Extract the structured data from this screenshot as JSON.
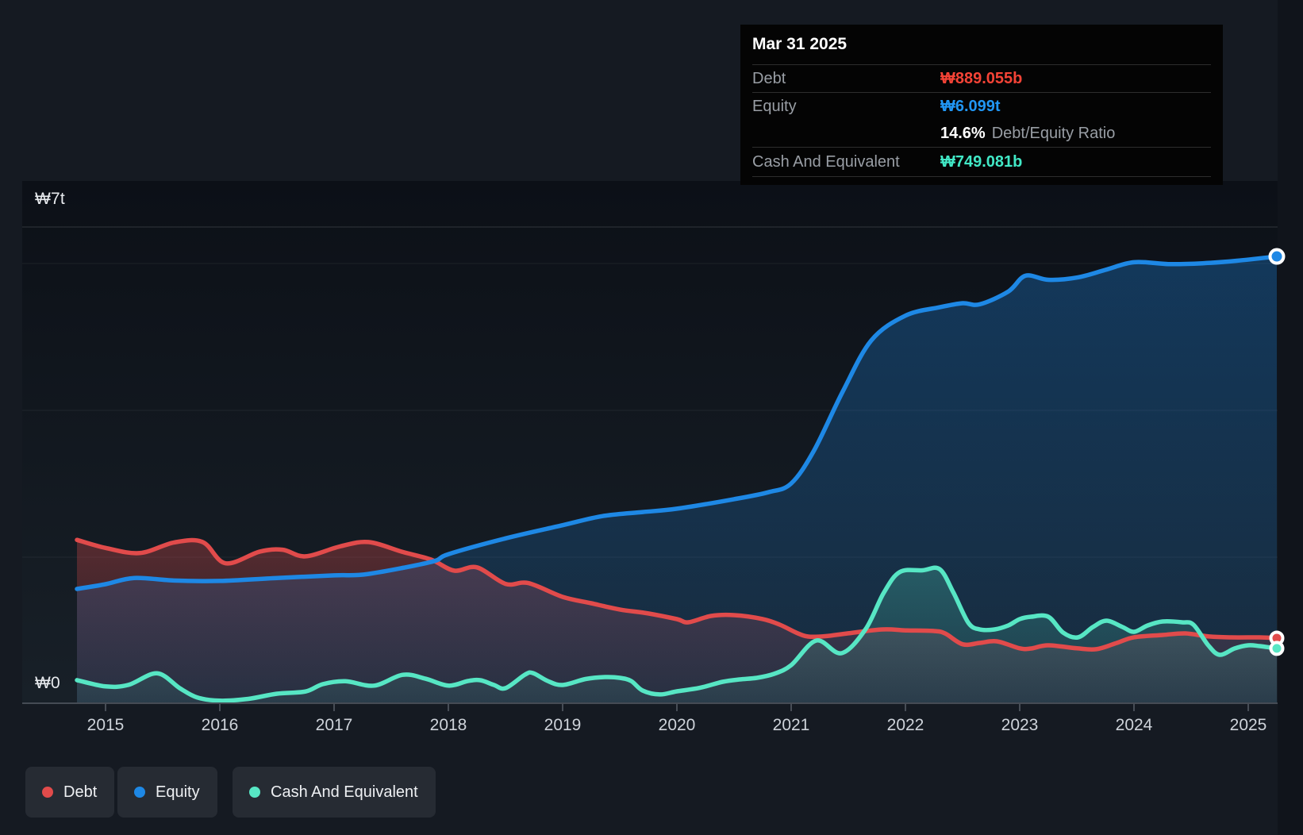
{
  "tooltip": {
    "date": "Mar 31 2025",
    "debt_label": "Debt",
    "debt_value": "₩889.055b",
    "equity_label": "Equity",
    "equity_value": "₩6.099t",
    "ratio_value": "14.6%",
    "ratio_label": "Debt/Equity Ratio",
    "cash_label": "Cash And Equivalent",
    "cash_value": "₩749.081b"
  },
  "y_axis": {
    "top_label": "₩7t",
    "bottom_label": "₩0"
  },
  "x_axis": {
    "labels": [
      "2015",
      "2016",
      "2017",
      "2018",
      "2019",
      "2020",
      "2021",
      "2022",
      "2023",
      "2024",
      "2025"
    ]
  },
  "legend": [
    {
      "label": "Debt",
      "color": "#e14b4b"
    },
    {
      "label": "Equity",
      "color": "#1e88e5"
    },
    {
      "label": "Cash And Equivalent",
      "color": "#57e6c4"
    }
  ],
  "colors": {
    "background": "#151a22",
    "plot_top": "#0c1017",
    "plot_bottom": "#182028",
    "grid_major": "rgba(255,255,255,0.10)",
    "grid_minor": "rgba(255,255,255,0.05)",
    "axis_line": "#454b54",
    "tick_label": "#ced3da",
    "tooltip_bg": "#040404",
    "debt_text": "#f44336",
    "equity_text": "#2196f3",
    "cash_text": "#41e8c6"
  },
  "chart_data": {
    "type": "area",
    "title": "",
    "xlabel": "",
    "ylabel": "₩ (won)",
    "value_unit": "billions of ₩",
    "x_unit": "decimal year",
    "xlim": [
      2014.75,
      2025.25
    ],
    "ylim": [
      0,
      7000
    ],
    "grid": true,
    "legend_position": "bottom-left",
    "latest_point": {
      "date": "Mar 31 2025",
      "debt_b": 889.055,
      "equity_b": 6099,
      "cash_b": 749.081,
      "debt_equity_ratio_pct": 14.6
    },
    "series": [
      {
        "name": "Debt",
        "color": "#e14b4b",
        "x": [
          2014.75,
          2015,
          2015.3,
          2015.6,
          2015.85,
          2016.05,
          2016.35,
          2016.55,
          2016.75,
          2017.05,
          2017.3,
          2017.6,
          2017.85,
          2018.05,
          2018.25,
          2018.5,
          2018.7,
          2019,
          2019.25,
          2019.5,
          2019.75,
          2020,
          2020.1,
          2020.3,
          2020.5,
          2020.75,
          2020.9,
          2021.05,
          2021.15,
          2021.3,
          2021.5,
          2021.8,
          2022,
          2022.25,
          2022.35,
          2022.5,
          2022.65,
          2022.8,
          2023,
          2023.1,
          2023.25,
          2023.5,
          2023.67,
          2023.85,
          2024,
          2024.25,
          2024.45,
          2024.65,
          2024.85,
          2025.1,
          2025.25
        ],
        "values": [
          2230,
          2120,
          2050,
          2195,
          2200,
          1910,
          2070,
          2095,
          2005,
          2140,
          2200,
          2065,
          1960,
          1810,
          1855,
          1630,
          1640,
          1452,
          1365,
          1280,
          1225,
          1148,
          1105,
          1192,
          1203,
          1150,
          1073,
          960,
          910,
          915,
          955,
          1008,
          995,
          986,
          950,
          805,
          823,
          845,
          750,
          748,
          791,
          750,
          738,
          823,
          900,
          932,
          953,
          912,
          899,
          899,
          889.055
        ]
      },
      {
        "name": "Equity",
        "color": "#1e88e5",
        "x": [
          2014.75,
          2015,
          2015.25,
          2015.6,
          2016,
          2016.5,
          2017,
          2017.3,
          2017.85,
          2018,
          2018.5,
          2019,
          2019.35,
          2019.7,
          2020,
          2020.5,
          2020.8,
          2021,
          2021.2,
          2021.45,
          2021.7,
          2022,
          2022.3,
          2022.5,
          2022.65,
          2022.9,
          2023.05,
          2023.25,
          2023.5,
          2023.75,
          2024,
          2024.3,
          2024.6,
          2024.9,
          2025.25
        ],
        "values": [
          1560,
          1625,
          1710,
          1675,
          1670,
          1710,
          1745,
          1765,
          1930,
          2035,
          2250,
          2430,
          2555,
          2610,
          2655,
          2785,
          2880,
          3000,
          3450,
          4250,
          4950,
          5290,
          5405,
          5460,
          5445,
          5620,
          5835,
          5780,
          5810,
          5915,
          6020,
          5995,
          6005,
          6040,
          6099
        ]
      },
      {
        "name": "Cash And Equivalent",
        "color": "#57e6c4",
        "x": [
          2014.75,
          2015,
          2015.2,
          2015.45,
          2015.65,
          2015.8,
          2016,
          2016.25,
          2016.5,
          2016.75,
          2016.9,
          2017.1,
          2017.35,
          2017.6,
          2017.8,
          2018,
          2018.17,
          2018.28,
          2018.4,
          2018.5,
          2018.67,
          2018.74,
          2018.87,
          2019,
          2019.2,
          2019.37,
          2019.5,
          2019.6,
          2019.7,
          2019.85,
          2020,
          2020.2,
          2020.4,
          2020.55,
          2020.7,
          2020.85,
          2021,
          2021.22,
          2021.44,
          2021.65,
          2021.81,
          2021.95,
          2022.15,
          2022.3,
          2022.42,
          2022.55,
          2022.65,
          2022.78,
          2022.9,
          2023,
          2023.1,
          2023.25,
          2023.38,
          2023.51,
          2023.64,
          2023.76,
          2023.9,
          2024,
          2024.12,
          2024.25,
          2024.42,
          2024.52,
          2024.65,
          2024.75,
          2024.88,
          2025,
          2025.1,
          2025.25
        ],
        "values": [
          315,
          230,
          250,
          408,
          205,
          80,
          35,
          60,
          130,
          160,
          260,
          300,
          240,
          388,
          335,
          240,
          303,
          314,
          249,
          206,
          390,
          412,
          303,
          249,
          330,
          357,
          347,
          303,
          173,
          120,
          162,
          210,
          292,
          325,
          347,
          401,
          520,
          856,
          683,
          1008,
          1506,
          1790,
          1815,
          1830,
          1510,
          1100,
          1008,
          1008,
          1062,
          1148,
          1181,
          1181,
          964,
          899,
          1040,
          1127,
          1040,
          975,
          1062,
          1116,
          1105,
          1073,
          791,
          661,
          748,
          791,
          780,
          749.081
        ]
      }
    ]
  }
}
